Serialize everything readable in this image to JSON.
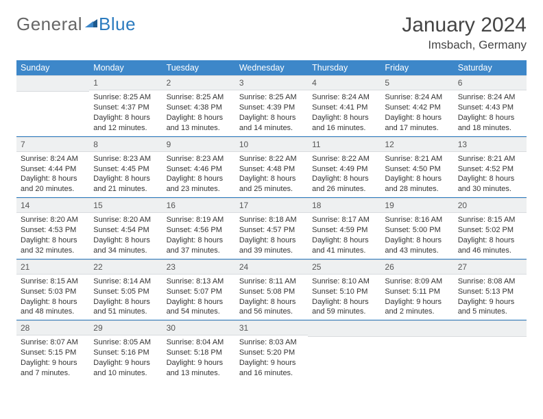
{
  "logo": {
    "part1": "General",
    "part2": "Blue"
  },
  "month_title": "January 2024",
  "location": "Imsbach, Germany",
  "colors": {
    "header_bg": "#3d87c9",
    "rule": "#2b7bbf",
    "daynum_bg": "#eef0f1"
  },
  "weekdays": [
    "Sunday",
    "Monday",
    "Tuesday",
    "Wednesday",
    "Thursday",
    "Friday",
    "Saturday"
  ],
  "weeks": [
    [
      {
        "n": "",
        "sr": "",
        "ss": "",
        "dl": ""
      },
      {
        "n": "1",
        "sr": "Sunrise: 8:25 AM",
        "ss": "Sunset: 4:37 PM",
        "dl": "Daylight: 8 hours and 12 minutes."
      },
      {
        "n": "2",
        "sr": "Sunrise: 8:25 AM",
        "ss": "Sunset: 4:38 PM",
        "dl": "Daylight: 8 hours and 13 minutes."
      },
      {
        "n": "3",
        "sr": "Sunrise: 8:25 AM",
        "ss": "Sunset: 4:39 PM",
        "dl": "Daylight: 8 hours and 14 minutes."
      },
      {
        "n": "4",
        "sr": "Sunrise: 8:24 AM",
        "ss": "Sunset: 4:41 PM",
        "dl": "Daylight: 8 hours and 16 minutes."
      },
      {
        "n": "5",
        "sr": "Sunrise: 8:24 AM",
        "ss": "Sunset: 4:42 PM",
        "dl": "Daylight: 8 hours and 17 minutes."
      },
      {
        "n": "6",
        "sr": "Sunrise: 8:24 AM",
        "ss": "Sunset: 4:43 PM",
        "dl": "Daylight: 8 hours and 18 minutes."
      }
    ],
    [
      {
        "n": "7",
        "sr": "Sunrise: 8:24 AM",
        "ss": "Sunset: 4:44 PM",
        "dl": "Daylight: 8 hours and 20 minutes."
      },
      {
        "n": "8",
        "sr": "Sunrise: 8:23 AM",
        "ss": "Sunset: 4:45 PM",
        "dl": "Daylight: 8 hours and 21 minutes."
      },
      {
        "n": "9",
        "sr": "Sunrise: 8:23 AM",
        "ss": "Sunset: 4:46 PM",
        "dl": "Daylight: 8 hours and 23 minutes."
      },
      {
        "n": "10",
        "sr": "Sunrise: 8:22 AM",
        "ss": "Sunset: 4:48 PM",
        "dl": "Daylight: 8 hours and 25 minutes."
      },
      {
        "n": "11",
        "sr": "Sunrise: 8:22 AM",
        "ss": "Sunset: 4:49 PM",
        "dl": "Daylight: 8 hours and 26 minutes."
      },
      {
        "n": "12",
        "sr": "Sunrise: 8:21 AM",
        "ss": "Sunset: 4:50 PM",
        "dl": "Daylight: 8 hours and 28 minutes."
      },
      {
        "n": "13",
        "sr": "Sunrise: 8:21 AM",
        "ss": "Sunset: 4:52 PM",
        "dl": "Daylight: 8 hours and 30 minutes."
      }
    ],
    [
      {
        "n": "14",
        "sr": "Sunrise: 8:20 AM",
        "ss": "Sunset: 4:53 PM",
        "dl": "Daylight: 8 hours and 32 minutes."
      },
      {
        "n": "15",
        "sr": "Sunrise: 8:20 AM",
        "ss": "Sunset: 4:54 PM",
        "dl": "Daylight: 8 hours and 34 minutes."
      },
      {
        "n": "16",
        "sr": "Sunrise: 8:19 AM",
        "ss": "Sunset: 4:56 PM",
        "dl": "Daylight: 8 hours and 37 minutes."
      },
      {
        "n": "17",
        "sr": "Sunrise: 8:18 AM",
        "ss": "Sunset: 4:57 PM",
        "dl": "Daylight: 8 hours and 39 minutes."
      },
      {
        "n": "18",
        "sr": "Sunrise: 8:17 AM",
        "ss": "Sunset: 4:59 PM",
        "dl": "Daylight: 8 hours and 41 minutes."
      },
      {
        "n": "19",
        "sr": "Sunrise: 8:16 AM",
        "ss": "Sunset: 5:00 PM",
        "dl": "Daylight: 8 hours and 43 minutes."
      },
      {
        "n": "20",
        "sr": "Sunrise: 8:15 AM",
        "ss": "Sunset: 5:02 PM",
        "dl": "Daylight: 8 hours and 46 minutes."
      }
    ],
    [
      {
        "n": "21",
        "sr": "Sunrise: 8:15 AM",
        "ss": "Sunset: 5:03 PM",
        "dl": "Daylight: 8 hours and 48 minutes."
      },
      {
        "n": "22",
        "sr": "Sunrise: 8:14 AM",
        "ss": "Sunset: 5:05 PM",
        "dl": "Daylight: 8 hours and 51 minutes."
      },
      {
        "n": "23",
        "sr": "Sunrise: 8:13 AM",
        "ss": "Sunset: 5:07 PM",
        "dl": "Daylight: 8 hours and 54 minutes."
      },
      {
        "n": "24",
        "sr": "Sunrise: 8:11 AM",
        "ss": "Sunset: 5:08 PM",
        "dl": "Daylight: 8 hours and 56 minutes."
      },
      {
        "n": "25",
        "sr": "Sunrise: 8:10 AM",
        "ss": "Sunset: 5:10 PM",
        "dl": "Daylight: 8 hours and 59 minutes."
      },
      {
        "n": "26",
        "sr": "Sunrise: 8:09 AM",
        "ss": "Sunset: 5:11 PM",
        "dl": "Daylight: 9 hours and 2 minutes."
      },
      {
        "n": "27",
        "sr": "Sunrise: 8:08 AM",
        "ss": "Sunset: 5:13 PM",
        "dl": "Daylight: 9 hours and 5 minutes."
      }
    ],
    [
      {
        "n": "28",
        "sr": "Sunrise: 8:07 AM",
        "ss": "Sunset: 5:15 PM",
        "dl": "Daylight: 9 hours and 7 minutes."
      },
      {
        "n": "29",
        "sr": "Sunrise: 8:05 AM",
        "ss": "Sunset: 5:16 PM",
        "dl": "Daylight: 9 hours and 10 minutes."
      },
      {
        "n": "30",
        "sr": "Sunrise: 8:04 AM",
        "ss": "Sunset: 5:18 PM",
        "dl": "Daylight: 9 hours and 13 minutes."
      },
      {
        "n": "31",
        "sr": "Sunrise: 8:03 AM",
        "ss": "Sunset: 5:20 PM",
        "dl": "Daylight: 9 hours and 16 minutes."
      },
      {
        "n": "",
        "sr": "",
        "ss": "",
        "dl": ""
      },
      {
        "n": "",
        "sr": "",
        "ss": "",
        "dl": ""
      },
      {
        "n": "",
        "sr": "",
        "ss": "",
        "dl": ""
      }
    ]
  ]
}
